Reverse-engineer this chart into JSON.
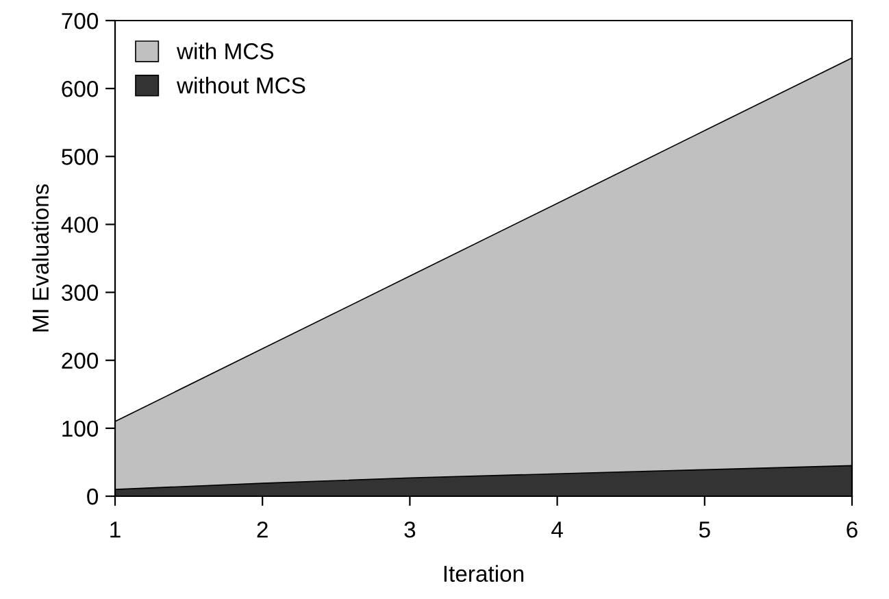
{
  "chart_data": {
    "type": "area",
    "xlabel": "Iteration",
    "ylabel": "MI Evaluations",
    "x": [
      1,
      2,
      3,
      4,
      5,
      6
    ],
    "xlim": [
      1,
      6
    ],
    "xticks": [
      1,
      2,
      3,
      4,
      5,
      6
    ],
    "ylim": [
      0,
      700
    ],
    "yticks": [
      0,
      100,
      200,
      300,
      400,
      500,
      600,
      700
    ],
    "series": [
      {
        "name": "with MCS",
        "color": "#c0c0c0",
        "values": [
          110,
          217,
          324,
          431,
          538,
          645
        ]
      },
      {
        "name": "without MCS",
        "color": "#333333",
        "values": [
          10,
          19,
          27,
          33,
          39,
          45
        ]
      }
    ],
    "legend": "top left",
    "grid": false
  }
}
